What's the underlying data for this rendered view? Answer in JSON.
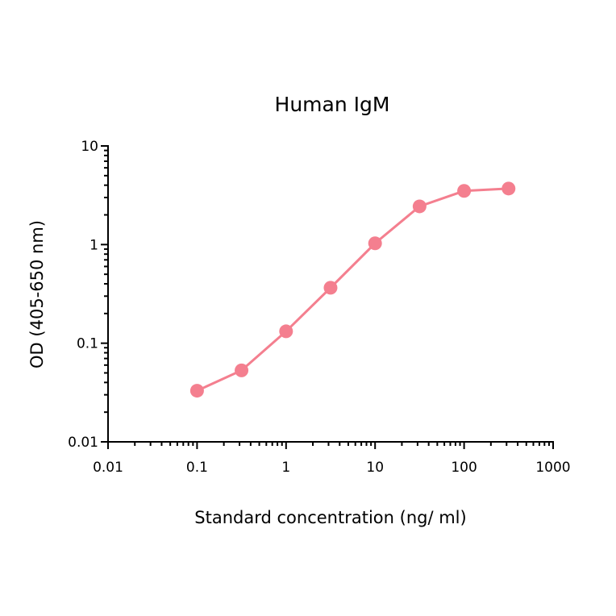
{
  "chart_data": {
    "type": "line",
    "title": "Human IgM",
    "xlabel": "Standard concentration (ng/ ml)",
    "ylabel": "OD (405-650 nm)",
    "xscale": "log",
    "yscale": "log",
    "xlim": [
      0.01,
      1000
    ],
    "ylim": [
      0.01,
      10
    ],
    "xticks": [
      "0.01",
      "0.1",
      "1",
      "10",
      "100",
      "1000"
    ],
    "yticks": [
      "0.01",
      "0.1",
      "1",
      "10"
    ],
    "grid": false,
    "legend": null,
    "series": [
      {
        "name": "Human IgM",
        "color": "#f47f8f",
        "marker": "circle",
        "x": [
          0.1,
          0.316,
          1,
          3.16,
          10,
          31.6,
          100,
          316
        ],
        "y": [
          0.033,
          0.053,
          0.132,
          0.365,
          1.03,
          2.44,
          3.5,
          3.7
        ]
      }
    ]
  },
  "plot": {
    "title": "Human IgM",
    "xlabel": "Standard concentration (ng/ ml)",
    "ylabel": "OD (405-650 nm)"
  }
}
